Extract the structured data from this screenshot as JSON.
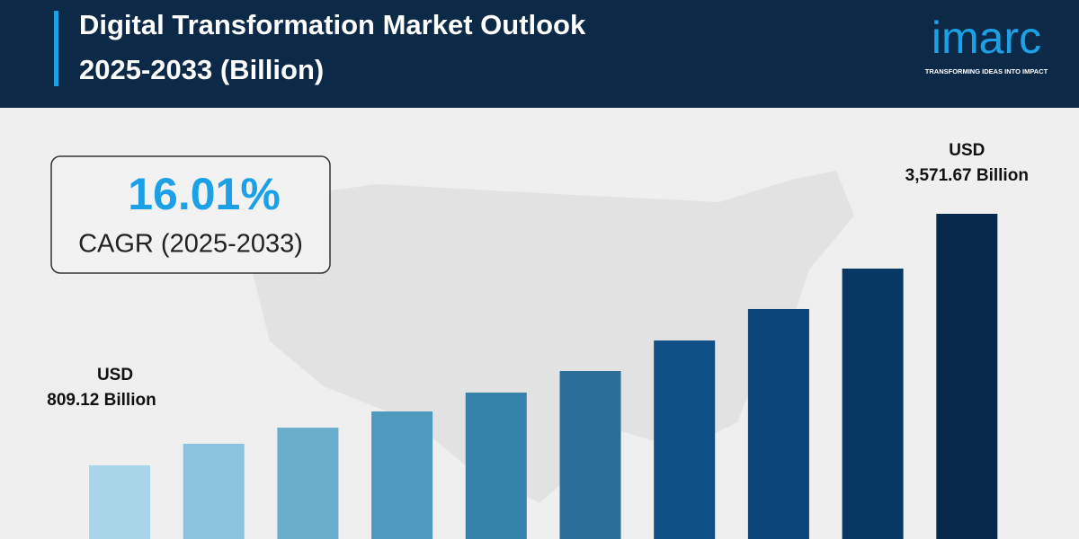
{
  "chart_data": {
    "type": "bar",
    "title_lines": [
      "Digital Transformation Market Outlook",
      "2025-2033 (Billion)"
    ],
    "logo": {
      "name": "imarc",
      "tagline": "TRANSFORMING IDEAS INTO IMPACT"
    },
    "cagr": {
      "value": "16.01%",
      "label": "CAGR (2025-2033)"
    },
    "categories": [
      null,
      null,
      null,
      null,
      null,
      null,
      null,
      null,
      null,
      null
    ],
    "values": [
      809.12,
      1046,
      1223,
      1401,
      1608,
      1845,
      2180,
      2526,
      2970,
      3571.67
    ],
    "value_label_prefix": "USD",
    "value_labels": [
      "809.12 Billion",
      null,
      null,
      null,
      null,
      null,
      null,
      null,
      null,
      "3,571.67 Billion"
    ],
    "colors": [
      "#a8d5e8",
      "#8cc3dc",
      "#6aaecc",
      "#4e9abf",
      "#3583ab",
      "#2a6e99",
      "#0e4f86",
      "#0b4478",
      "#073863",
      "#072a4a"
    ]
  }
}
